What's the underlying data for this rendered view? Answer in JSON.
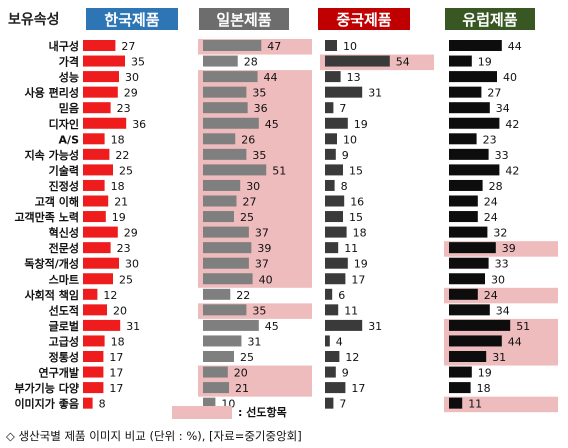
{
  "chart_data": {
    "type": "bar",
    "corner_label": "보유속성",
    "categories": [
      "내구성",
      "가격",
      "성능",
      "사용 편리성",
      "믿음",
      "디자인",
      "A/S",
      "지속 가능성",
      "기술력",
      "진정성",
      "고객 이해",
      "고객만족 노력",
      "혁신성",
      "전문성",
      "독창적/개성",
      "스마트",
      "사회적 책임",
      "선도적",
      "글로벌",
      "고급성",
      "정통성",
      "연구개발",
      "부가기능 다양",
      "이미지가 좋음"
    ],
    "series": [
      {
        "name": "한국제품",
        "header_color": "#2e75b6",
        "bar_color": "#ee1c1c",
        "values": [
          27,
          35,
          30,
          29,
          23,
          36,
          18,
          22,
          25,
          18,
          21,
          19,
          29,
          23,
          30,
          25,
          12,
          20,
          31,
          18,
          17,
          17,
          17,
          8
        ],
        "highlight": []
      },
      {
        "name": "일본제품",
        "header_color": "#6d6d6d",
        "bar_color": "#7f7f7f",
        "values": [
          47,
          28,
          44,
          35,
          36,
          45,
          26,
          35,
          51,
          30,
          27,
          25,
          37,
          39,
          37,
          40,
          22,
          35,
          45,
          31,
          25,
          20,
          21,
          10
        ],
        "highlight": [
          [
            0,
            0
          ],
          [
            2,
            15
          ],
          [
            17,
            17
          ],
          [
            21,
            22
          ]
        ]
      },
      {
        "name": "중국제품",
        "header_color": "#c00000",
        "bar_color": "#3a3a3a",
        "values": [
          10,
          54,
          13,
          31,
          7,
          19,
          10,
          9,
          15,
          8,
          16,
          15,
          18,
          11,
          19,
          17,
          6,
          11,
          31,
          4,
          12,
          9,
          17,
          7
        ],
        "highlight": [
          [
            1,
            1
          ]
        ]
      },
      {
        "name": "유럽제품",
        "header_color": "#385723",
        "bar_color": "#0d0d0d",
        "values": [
          44,
          19,
          40,
          27,
          34,
          42,
          23,
          33,
          42,
          28,
          24,
          24,
          32,
          39,
          33,
          30,
          24,
          34,
          51,
          44,
          31,
          19,
          18,
          11
        ],
        "highlight": [
          [
            13,
            13
          ],
          [
            16,
            16
          ],
          [
            18,
            20
          ],
          [
            23,
            23
          ]
        ]
      }
    ],
    "legend_label": ": 선도항목",
    "highlight_color": "#efbcbe",
    "caption": "◇ 생산국별 제품 이미지 비교 (단위 : %), [자료=중기중앙회]"
  }
}
